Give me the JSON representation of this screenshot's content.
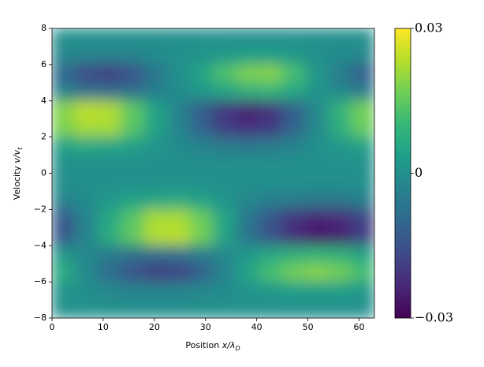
{
  "chart_data": {
    "type": "heatmap",
    "xlabel": [
      "Position ",
      "x/λ",
      "D"
    ],
    "ylabel": [
      "Velocity ",
      "v/v",
      "t"
    ],
    "xlim": [
      0,
      63
    ],
    "ylim": [
      -8,
      8
    ],
    "xticks": [
      0,
      10,
      20,
      30,
      40,
      50,
      60
    ],
    "yticks": [
      {
        "value": -8,
        "label": "−8"
      },
      {
        "value": -6,
        "label": "−6"
      },
      {
        "value": -4,
        "label": "−4"
      },
      {
        "value": -2,
        "label": "−2"
      },
      0,
      2,
      4,
      6,
      8
    ],
    "colormap": "viridis",
    "clim": [
      -0.03,
      0.03
    ],
    "cticks": [
      {
        "value": -0.03,
        "label": "−0.03"
      },
      0,
      0.03
    ],
    "x": [
      2.25,
      6.75,
      11.25,
      15.75,
      20.25,
      24.75,
      29.25,
      33.75,
      38.25,
      42.75,
      47.25,
      51.75,
      56.25,
      60.75
    ],
    "y": [
      7.5,
      6.5,
      5.5,
      4.5,
      3.5,
      2.5,
      1.5,
      0.5,
      -0.5,
      -1.5,
      -2.5,
      -3.5,
      -4.5,
      -5.5,
      -6.5,
      -7.5
    ],
    "z": [
      [
        0,
        0,
        0,
        0,
        0,
        0,
        0,
        0,
        0,
        0,
        0,
        0,
        0,
        0
      ],
      [
        -0.002,
        -0.003,
        -0.003,
        -0.003,
        -0.001,
        0,
        0.001,
        0.002,
        0.003,
        0.003,
        0.002,
        0,
        -0.001,
        -0.002
      ],
      [
        -0.01,
        -0.017,
        -0.019,
        -0.015,
        -0.007,
        0,
        0.005,
        0.013,
        0.018,
        0.019,
        0.012,
        0.002,
        -0.005,
        -0.012
      ],
      [
        -0.004,
        -0.008,
        -0.009,
        -0.008,
        -0.004,
        -0.001,
        0.002,
        0.005,
        0.008,
        0.009,
        0.006,
        0.001,
        -0.002,
        -0.005
      ],
      [
        0.019,
        0.024,
        0.023,
        0.015,
        0.005,
        -0.003,
        -0.012,
        -0.02,
        -0.024,
        -0.021,
        -0.012,
        -0.002,
        0.009,
        0.017
      ],
      [
        0.018,
        0.022,
        0.022,
        0.014,
        0.005,
        -0.003,
        -0.011,
        -0.019,
        -0.022,
        -0.02,
        -0.011,
        -0.002,
        0.008,
        0.016
      ],
      [
        0.004,
        0.006,
        0.005,
        0.004,
        0.001,
        -0.001,
        -0.003,
        -0.005,
        -0.006,
        -0.005,
        -0.003,
        0,
        0.002,
        0.004
      ],
      [
        0,
        0,
        0,
        0,
        0,
        0,
        0,
        0,
        0,
        0,
        0,
        0,
        0,
        0
      ],
      [
        0,
        0,
        0,
        0,
        0,
        0,
        0,
        0,
        0,
        0,
        0,
        0,
        0,
        0
      ],
      [
        -0.003,
        -0.001,
        0.002,
        0.004,
        0.005,
        0.006,
        0.004,
        0.001,
        -0.002,
        -0.004,
        -0.005,
        -0.006,
        -0.006,
        -0.004
      ],
      [
        -0.013,
        -0.003,
        0.006,
        0.014,
        0.022,
        0.022,
        0.016,
        0.005,
        -0.006,
        -0.014,
        -0.021,
        -0.024,
        -0.023,
        -0.018
      ],
      [
        -0.014,
        -0.003,
        0.007,
        0.015,
        0.023,
        0.024,
        0.017,
        0.005,
        -0.007,
        -0.015,
        -0.022,
        -0.026,
        -0.025,
        -0.019
      ],
      [
        0.002,
        -0.002,
        -0.005,
        -0.008,
        -0.009,
        -0.008,
        -0.005,
        -0.002,
        0.002,
        0.006,
        0.008,
        0.009,
        0.008,
        0.005
      ],
      [
        0.007,
        -0.002,
        -0.009,
        -0.015,
        -0.019,
        -0.018,
        -0.012,
        -0.003,
        0.005,
        0.012,
        0.017,
        0.019,
        0.017,
        0.012
      ],
      [
        0.001,
        0,
        -0.002,
        -0.003,
        -0.003,
        -0.003,
        -0.002,
        -0.001,
        0.001,
        0.002,
        0.003,
        0.003,
        0.003,
        0.002
      ],
      [
        0,
        0,
        0,
        0,
        0,
        0,
        0,
        0,
        0,
        0,
        0,
        0,
        0,
        0
      ]
    ]
  }
}
